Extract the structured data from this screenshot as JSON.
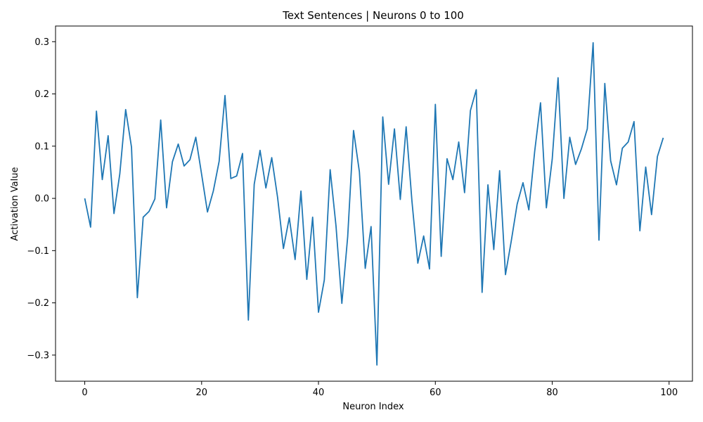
{
  "chart_data": {
    "type": "line",
    "title": "Text Sentences | Neurons 0 to 100",
    "xlabel": "Neuron Index",
    "ylabel": "Activation Value",
    "xlim": [
      -5,
      104
    ],
    "ylim": [
      -0.35,
      0.33
    ],
    "xticks": [
      0,
      20,
      40,
      60,
      80,
      100
    ],
    "yticks": [
      -0.3,
      -0.2,
      -0.1,
      0.0,
      0.1,
      0.2,
      0.3
    ],
    "xtick_labels": [
      "0",
      "20",
      "40",
      "60",
      "80",
      "100"
    ],
    "ytick_labels": [
      "−0.3",
      "−0.2",
      "−0.1",
      "0.0",
      "0.1",
      "0.2",
      "0.3"
    ],
    "grid": false,
    "line_color": "#1f77b4",
    "series": [
      {
        "values": [
          0.0,
          -0.055,
          0.167,
          0.036,
          0.12,
          -0.029,
          0.047,
          0.17,
          0.098,
          -0.19,
          -0.036,
          -0.025,
          -0.001,
          0.15,
          -0.018,
          0.07,
          0.104,
          0.062,
          0.074,
          0.117,
          0.046,
          -0.026,
          0.014,
          0.071,
          0.197,
          0.038,
          0.043,
          0.086,
          -0.233,
          0.027,
          0.092,
          0.02,
          0.078,
          0.002,
          -0.096,
          -0.037,
          -0.117,
          0.014,
          -0.155,
          -0.036,
          -0.218,
          -0.156,
          0.055,
          -0.053,
          -0.201,
          -0.073,
          0.13,
          0.051,
          -0.134,
          -0.054,
          -0.319,
          0.156,
          0.027,
          0.133,
          -0.002,
          0.137,
          -0.006,
          -0.124,
          -0.072,
          -0.135,
          0.18,
          -0.111,
          0.076,
          0.036,
          0.108,
          0.011,
          0.168,
          0.208,
          -0.18,
          0.026,
          -0.098,
          0.053,
          -0.146,
          -0.081,
          -0.011,
          0.03,
          -0.022,
          0.09,
          0.183,
          -0.018,
          0.075,
          0.231,
          0.0,
          0.117,
          0.065,
          0.095,
          0.133,
          0.298,
          -0.08,
          0.22,
          0.072,
          0.026,
          0.096,
          0.108,
          0.147,
          -0.062,
          0.06,
          -0.031,
          0.08,
          0.116
        ]
      }
    ]
  }
}
